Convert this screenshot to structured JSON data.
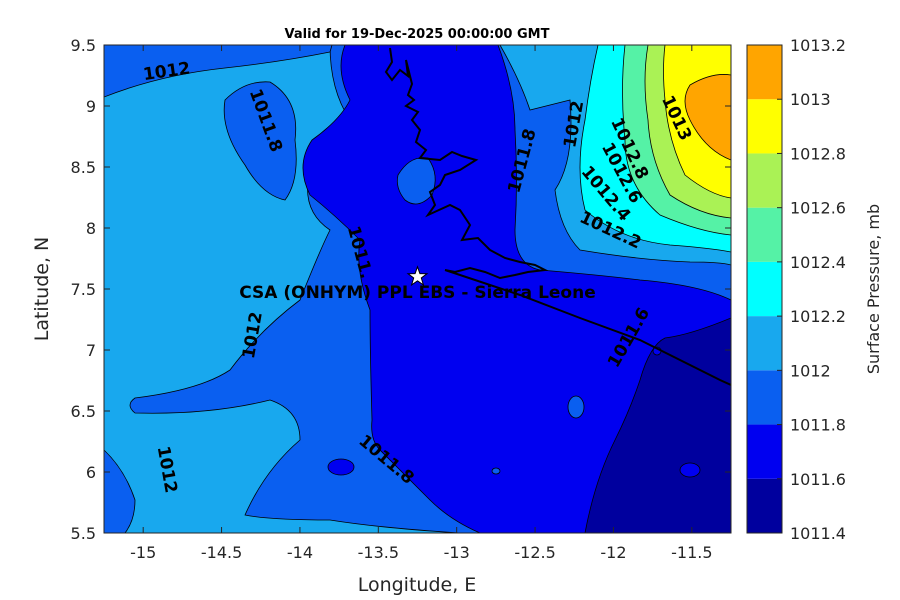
{
  "chart_data": {
    "type": "contour",
    "title": "Valid for 19-Dec-2025 00:00:00 GMT",
    "xlabel": "Longitude, E",
    "ylabel": "Latitude, N",
    "xlim": [
      -15.25,
      -11.25
    ],
    "ylim": [
      5.5,
      9.5
    ],
    "x_ticks": [
      "-15",
      "-14.5",
      "-14",
      "-13.5",
      "-13",
      "-12.5",
      "-12",
      "-11.5"
    ],
    "y_ticks": [
      "5.5",
      "6",
      "6.5",
      "7",
      "7.5",
      "8",
      "8.5",
      "9",
      "9.5"
    ],
    "colorbar": {
      "label": "Surface Pressure, mb",
      "levels": [
        1011.4,
        1011.6,
        1011.8,
        1012,
        1012.2,
        1012.4,
        1012.6,
        1012.8,
        1013,
        1013.2
      ],
      "tick_labels": [
        "1011.4",
        "1011.6",
        "1011.8",
        "1012",
        "1012.2",
        "1012.4",
        "1012.6",
        "1012.8",
        "1013",
        "1013.2"
      ],
      "colors": [
        "#00009e",
        "#0000f0",
        "#0a5ff0",
        "#18a8ee",
        "#00ffff",
        "#55f2a6",
        "#aaf255",
        "#ffff00",
        "#ffa500",
        "#ff5500"
      ]
    },
    "contour_labels": [
      {
        "text": "1012",
        "lon": -14.85,
        "lat": 9.28
      },
      {
        "text": "1011.8",
        "lon": -14.22,
        "lat": 8.88
      },
      {
        "text": "1011.8",
        "lon": -12.58,
        "lat": 8.55
      },
      {
        "text": "1012",
        "lon": -12.25,
        "lat": 8.85
      },
      {
        "text": "1013",
        "lon": -11.6,
        "lat": 8.9
      },
      {
        "text": "1012.8",
        "lon": -11.9,
        "lat": 8.65
      },
      {
        "text": "1012.6",
        "lon": -11.95,
        "lat": 8.45
      },
      {
        "text": "1012.4",
        "lon": -12.05,
        "lat": 8.28
      },
      {
        "text": "1012.2",
        "lon": -12.02,
        "lat": 7.98
      },
      {
        "text": "1011.",
        "lon": -13.62,
        "lat": 7.8
      },
      {
        "text": "1012",
        "lon": -14.3,
        "lat": 7.12
      },
      {
        "text": "1011.8",
        "lon": -13.45,
        "lat": 6.1
      },
      {
        "text": "1012",
        "lon": -14.85,
        "lat": 6.02
      },
      {
        "text": "1011.6",
        "lon": -11.9,
        "lat": 7.1
      }
    ],
    "station": {
      "label": "CSA (ONHYM) PPL EBS  - Sierra Leone",
      "lon": -13.25,
      "lat": 7.6,
      "marker": "star"
    }
  }
}
